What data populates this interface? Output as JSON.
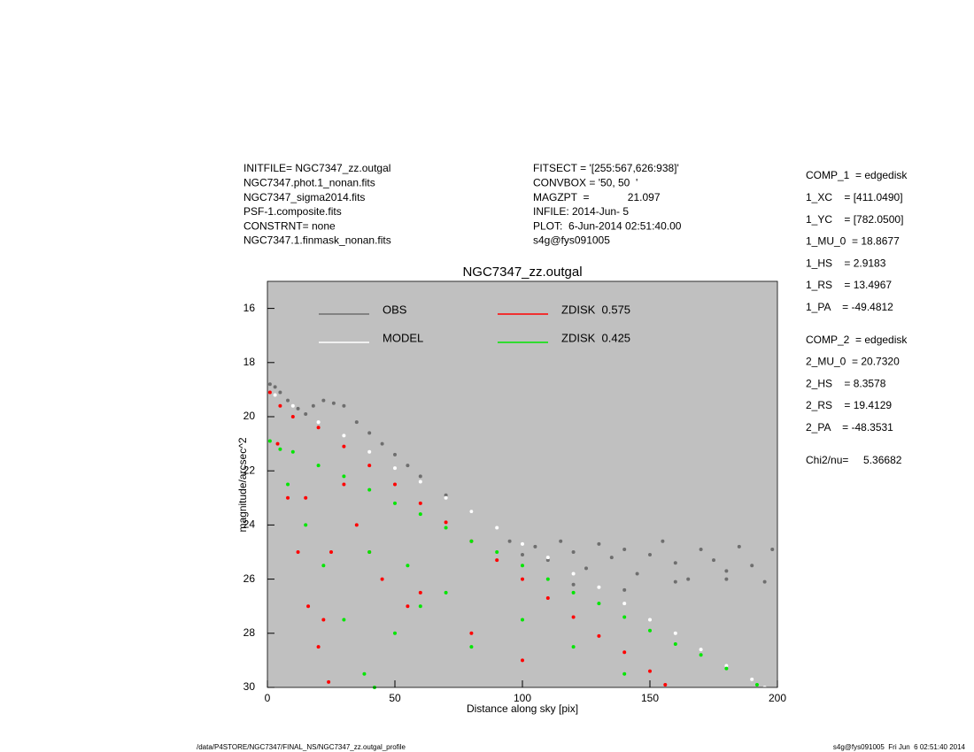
{
  "header": {
    "left": [
      "INITFILE= NGC7347_zz.outgal",
      "NGC7347.phot.1_nonan.fits",
      "NGC7347_sigma2014.fits",
      "PSF-1.composite.fits",
      "CONSTRNT= none",
      "NGC7347.1.finmask_nonan.fits"
    ],
    "middle": [
      "FITSECT = '[255:567,626:938]'",
      "CONVBOX = '50, 50  '",
      "MAGZPT  =             21.097",
      "INFILE: 2014-Jun- 5",
      "PLOT:  6-Jun-2014 02:51:40.00",
      "s4g@fys091005"
    ]
  },
  "parameters": [
    [
      "COMP_1  = edgedisk",
      "1_XC    = [411.0490]",
      "1_YC    = [782.0500]",
      "1_MU_0  = 18.8677",
      "1_HS    = 2.9183",
      "1_RS    = 13.4967",
      "1_PA    = -49.4812"
    ],
    [
      "COMP_2  = edgedisk",
      "2_MU_0  = 20.7320",
      "2_HS    = 8.3578",
      "2_RS    = 19.4129",
      "2_PA    = -48.3531"
    ],
    [
      "Chi2/nu=     5.36682"
    ]
  ],
  "footer": {
    "left": "/data/P4STORE/NGC7347/FINAL_NS/NGC7347_zz.outgal_profile",
    "right": "s4g@fys091005  Fri Jun  6 02:51:40 2014"
  },
  "chart_data": {
    "type": "scatter",
    "title": "NGC7347_zz.outgal",
    "x_label": "Distance along sky [pix]",
    "y_label": "magnitude/arcsec^2",
    "xlim": [
      0,
      200
    ],
    "ylim": [
      30,
      15
    ],
    "xticks": [
      0,
      50,
      100,
      150,
      200
    ],
    "yticks": [
      16,
      18,
      20,
      22,
      24,
      26,
      28,
      30
    ],
    "background": "#c0c0c0",
    "series": [
      {
        "name": "OBS",
        "color": "#6e6e6e",
        "x": [
          1,
          3,
          5,
          8,
          12,
          15,
          18,
          22,
          26,
          30,
          35,
          40,
          45,
          50,
          55,
          60,
          70,
          80,
          95,
          100,
          105,
          110,
          115,
          120,
          125,
          130,
          135,
          140,
          145,
          150,
          155,
          160,
          165,
          170,
          175,
          180,
          185,
          190,
          195,
          198,
          120,
          140,
          160,
          180
        ],
        "values": [
          18.8,
          18.9,
          19.1,
          19.4,
          19.7,
          19.9,
          19.6,
          19.4,
          19.5,
          19.6,
          20.2,
          20.6,
          21.0,
          21.4,
          21.8,
          22.2,
          22.9,
          23.5,
          24.6,
          25.1,
          24.8,
          25.3,
          24.6,
          25.0,
          25.6,
          24.7,
          25.2,
          24.9,
          25.8,
          25.1,
          24.6,
          25.4,
          26.0,
          24.9,
          25.3,
          25.7,
          24.8,
          25.5,
          26.1,
          24.9,
          26.2,
          26.4,
          26.1,
          26.0
        ]
      },
      {
        "name": "MODEL",
        "color": "#ffffff",
        "x": [
          3,
          10,
          20,
          30,
          40,
          50,
          60,
          70,
          80,
          90,
          100,
          110,
          120,
          130,
          140,
          150,
          160,
          170,
          180,
          190,
          195
        ],
        "values": [
          19.2,
          19.6,
          20.2,
          20.7,
          21.3,
          21.9,
          22.4,
          23.0,
          23.5,
          24.1,
          24.7,
          25.2,
          25.8,
          26.3,
          26.9,
          27.5,
          28.0,
          28.6,
          29.2,
          29.7,
          30.0
        ]
      },
      {
        "name": "ZDISK  0.575",
        "color": "#ff0000",
        "x": [
          1,
          5,
          10,
          20,
          30,
          40,
          50,
          60,
          70,
          80,
          90,
          100,
          110,
          120,
          130,
          140,
          150,
          156,
          4,
          8,
          12,
          16,
          20,
          24,
          15,
          25,
          35,
          45,
          55,
          22,
          30,
          40,
          60,
          80,
          100
        ],
        "values": [
          19.1,
          19.6,
          20.0,
          20.4,
          21.1,
          21.8,
          22.5,
          23.2,
          23.9,
          24.6,
          25.3,
          26.0,
          26.7,
          27.4,
          28.1,
          28.7,
          29.4,
          29.9,
          21,
          23,
          25,
          27,
          28.5,
          29.8,
          23,
          25,
          24,
          26,
          27,
          27.5,
          22.5,
          25,
          26.5,
          28,
          29
        ]
      },
      {
        "name": "ZDISK  0.425",
        "color": "#00e600",
        "x": [
          1,
          5,
          10,
          20,
          30,
          40,
          50,
          60,
          70,
          80,
          90,
          100,
          110,
          120,
          130,
          140,
          150,
          160,
          170,
          180,
          192,
          8,
          15,
          22,
          30,
          38,
          42,
          50,
          60,
          70,
          80,
          100,
          120,
          140,
          40,
          55
        ],
        "values": [
          20.9,
          21.2,
          21.3,
          21.8,
          22.2,
          22.7,
          23.2,
          23.6,
          24.1,
          24.6,
          25.0,
          25.5,
          26.0,
          26.5,
          26.9,
          27.4,
          27.9,
          28.4,
          28.8,
          29.3,
          29.9,
          22.5,
          24,
          25.5,
          27.5,
          29.5,
          30,
          28,
          27,
          26.5,
          28.5,
          27.5,
          28.5,
          29.5,
          25,
          25.5
        ]
      }
    ]
  }
}
